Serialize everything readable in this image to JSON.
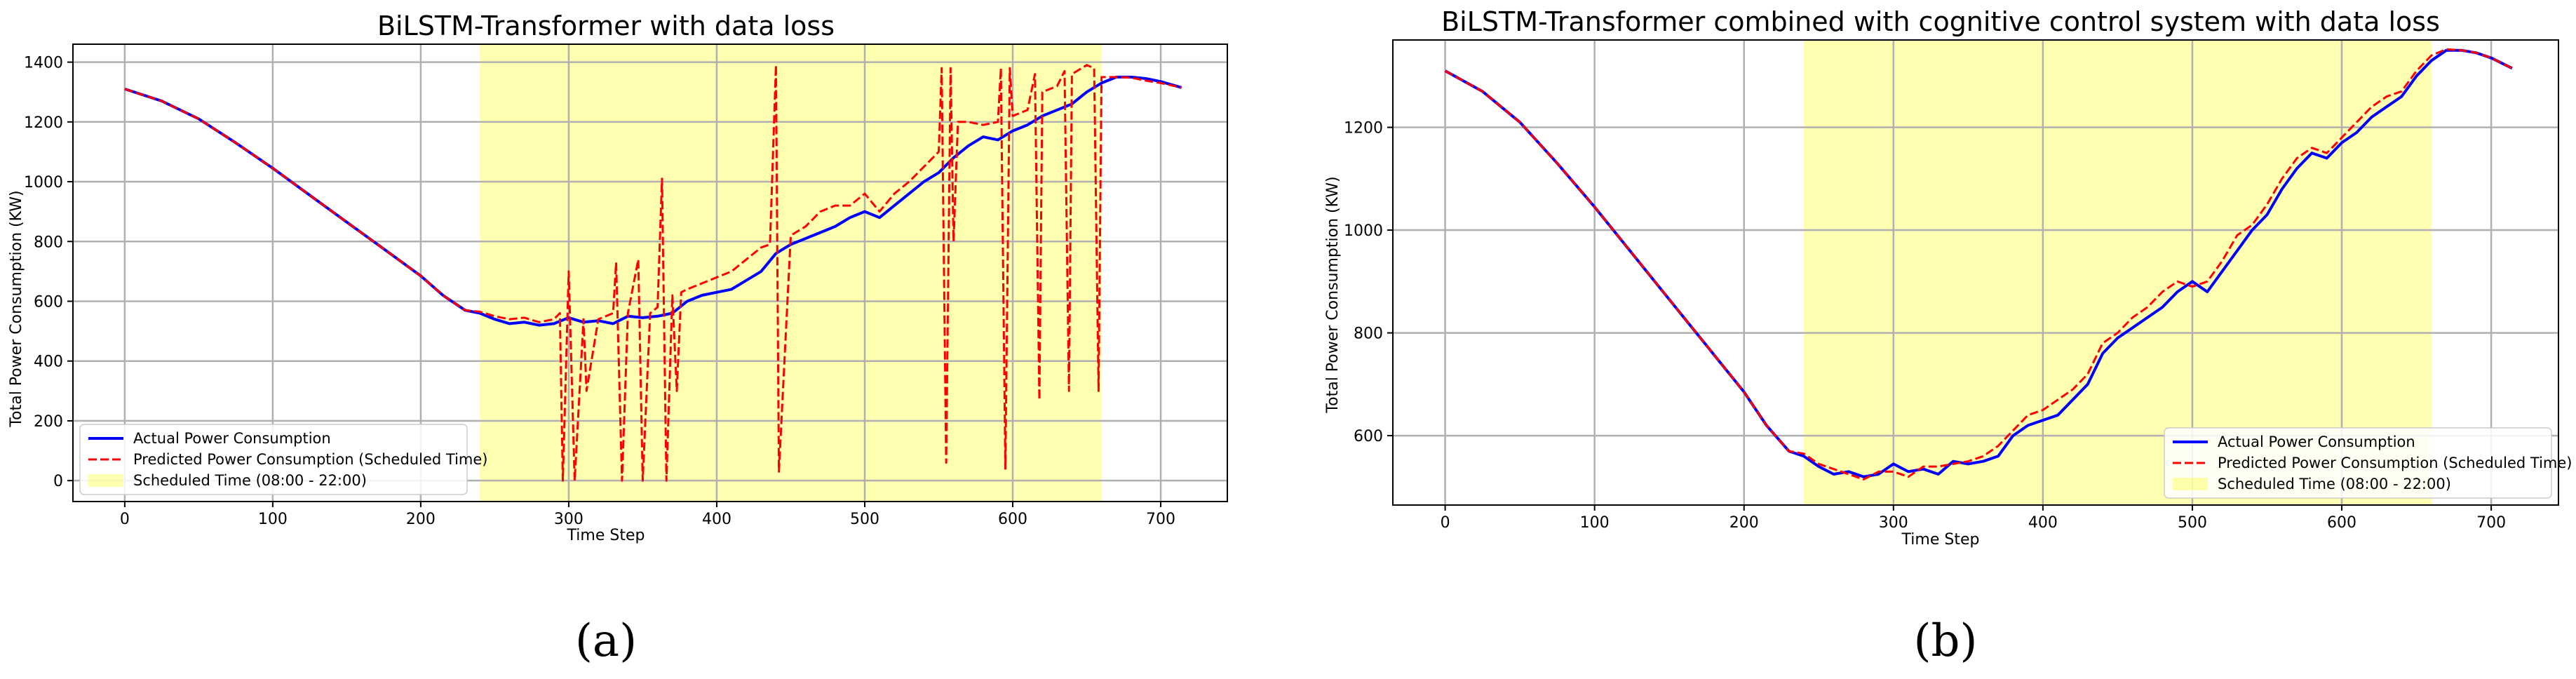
{
  "panels": [
    {
      "label": "(a)"
    },
    {
      "label": "(b)"
    }
  ],
  "colors": {
    "actual": "#0000ff",
    "predicted": "#ff0000",
    "scheduled": "#ffff00",
    "grid": "#b0b0b0"
  },
  "chart_data": [
    {
      "type": "line",
      "title": "BiLSTM-Transformer with data loss",
      "xlabel": "Time Step",
      "ylabel": "Total Power Consumption (KW)",
      "xlim": [
        -35,
        745
      ],
      "ylim": [
        -70,
        1460
      ],
      "xticks": [
        0,
        100,
        200,
        300,
        400,
        500,
        600,
        700
      ],
      "yticks": [
        0,
        200,
        400,
        600,
        800,
        1000,
        1200,
        1400
      ],
      "grid": true,
      "legend_position": "lower-left",
      "scheduled_span": [
        240,
        660
      ],
      "series": [
        {
          "name": "Actual Power Consumption",
          "style": "solid",
          "x": [
            0,
            25,
            50,
            75,
            100,
            125,
            150,
            175,
            200,
            215,
            230,
            240,
            250,
            260,
            270,
            280,
            290,
            300,
            310,
            320,
            330,
            340,
            350,
            360,
            370,
            380,
            390,
            400,
            410,
            420,
            430,
            440,
            450,
            460,
            470,
            480,
            490,
            500,
            510,
            520,
            530,
            540,
            550,
            560,
            570,
            580,
            590,
            600,
            610,
            620,
            630,
            640,
            650,
            660,
            670,
            680,
            690,
            700,
            714
          ],
          "y": [
            1310,
            1270,
            1210,
            1130,
            1045,
            955,
            865,
            775,
            685,
            620,
            570,
            560,
            540,
            525,
            530,
            520,
            525,
            545,
            530,
            535,
            525,
            550,
            545,
            550,
            560,
            600,
            620,
            630,
            640,
            670,
            700,
            760,
            790,
            810,
            830,
            850,
            880,
            900,
            880,
            920,
            960,
            1000,
            1030,
            1080,
            1120,
            1150,
            1140,
            1170,
            1190,
            1220,
            1240,
            1260,
            1300,
            1330,
            1350,
            1350,
            1345,
            1335,
            1315
          ]
        },
        {
          "name": "Predicted Power Consumption (Scheduled Time)",
          "style": "dashed",
          "x": [
            0,
            25,
            50,
            75,
            100,
            125,
            150,
            175,
            200,
            215,
            230,
            240,
            250,
            260,
            270,
            280,
            290,
            294,
            296,
            300,
            304,
            310,
            312,
            320,
            330,
            332,
            336,
            340,
            347,
            350,
            355,
            360,
            363,
            366,
            370,
            373,
            376,
            380,
            390,
            400,
            410,
            420,
            430,
            436,
            440,
            442,
            450,
            460,
            470,
            480,
            490,
            500,
            510,
            520,
            530,
            540,
            550,
            552,
            555,
            558,
            560,
            563,
            570,
            580,
            590,
            592,
            595,
            598,
            600,
            610,
            615,
            618,
            620,
            630,
            635,
            638,
            640,
            650,
            655,
            658,
            660,
            670,
            680,
            690,
            700,
            714
          ],
          "y": [
            1310,
            1270,
            1210,
            1130,
            1045,
            955,
            865,
            775,
            685,
            620,
            570,
            565,
            550,
            540,
            545,
            530,
            540,
            560,
            0,
            700,
            0,
            540,
            300,
            540,
            560,
            730,
            0,
            560,
            740,
            0,
            560,
            580,
            1010,
            0,
            620,
            300,
            630,
            640,
            660,
            680,
            700,
            740,
            780,
            790,
            1390,
            30,
            820,
            850,
            900,
            920,
            920,
            960,
            900,
            960,
            1000,
            1050,
            1100,
            1380,
            60,
            1380,
            800,
            1200,
            1200,
            1190,
            1200,
            1380,
            40,
            1380,
            1220,
            1240,
            1360,
            270,
            1300,
            1320,
            1370,
            300,
            1360,
            1390,
            1380,
            300,
            1350,
            1350,
            1348,
            1338,
            1330,
            1315
          ]
        }
      ],
      "legend": [
        "Actual Power Consumption",
        "Predicted Power Consumption (Scheduled Time)",
        "Scheduled Time (08:00 - 22:00)"
      ]
    },
    {
      "type": "line",
      "title": "BiLSTM-Transformer combined with cognitive control system with data loss",
      "xlabel": "Time Step",
      "ylabel": "Total Power Consumption (KW)",
      "xlim": [
        -35,
        745
      ],
      "ylim": [
        465,
        1370
      ],
      "xticks": [
        0,
        100,
        200,
        300,
        400,
        500,
        600,
        700
      ],
      "yticks": [
        600,
        800,
        1000,
        1200
      ],
      "grid": true,
      "legend_position": "lower-right",
      "scheduled_span": [
        240,
        660
      ],
      "series": [
        {
          "name": "Actual Power Consumption",
          "style": "solid",
          "x": [
            0,
            25,
            50,
            75,
            100,
            125,
            150,
            175,
            200,
            215,
            230,
            240,
            250,
            260,
            270,
            280,
            290,
            300,
            310,
            320,
            330,
            340,
            350,
            360,
            370,
            380,
            390,
            400,
            410,
            420,
            430,
            440,
            450,
            460,
            470,
            480,
            490,
            500,
            510,
            520,
            530,
            540,
            550,
            560,
            570,
            580,
            590,
            600,
            610,
            620,
            630,
            640,
            650,
            660,
            670,
            680,
            690,
            700,
            714
          ],
          "y": [
            1310,
            1270,
            1210,
            1130,
            1045,
            955,
            865,
            775,
            685,
            620,
            570,
            560,
            540,
            525,
            530,
            520,
            525,
            545,
            530,
            535,
            525,
            550,
            545,
            550,
            560,
            600,
            620,
            630,
            640,
            670,
            700,
            760,
            790,
            810,
            830,
            850,
            880,
            900,
            880,
            920,
            960,
            1000,
            1030,
            1080,
            1120,
            1150,
            1140,
            1170,
            1190,
            1220,
            1240,
            1260,
            1300,
            1330,
            1350,
            1350,
            1345,
            1335,
            1315
          ]
        },
        {
          "name": "Predicted Power Consumption (Scheduled Time)",
          "style": "dashed",
          "x": [
            0,
            25,
            50,
            75,
            100,
            125,
            150,
            175,
            200,
            215,
            230,
            240,
            250,
            260,
            270,
            280,
            290,
            300,
            310,
            320,
            330,
            340,
            350,
            360,
            370,
            380,
            390,
            400,
            410,
            420,
            430,
            440,
            450,
            460,
            470,
            480,
            490,
            500,
            510,
            520,
            530,
            540,
            550,
            560,
            570,
            580,
            590,
            600,
            610,
            620,
            630,
            640,
            650,
            660,
            670,
            680,
            690,
            700,
            714
          ],
          "y": [
            1310,
            1270,
            1210,
            1130,
            1045,
            955,
            865,
            775,
            685,
            620,
            570,
            565,
            545,
            535,
            525,
            515,
            530,
            530,
            520,
            540,
            540,
            545,
            550,
            560,
            580,
            610,
            640,
            650,
            670,
            690,
            720,
            780,
            800,
            830,
            850,
            880,
            900,
            890,
            900,
            940,
            990,
            1010,
            1050,
            1100,
            1140,
            1160,
            1150,
            1180,
            1210,
            1240,
            1260,
            1270,
            1310,
            1340,
            1352,
            1350,
            1345,
            1335,
            1315
          ]
        }
      ],
      "legend": [
        "Actual Power Consumption",
        "Predicted Power Consumption (Scheduled Time)",
        "Scheduled Time (08:00 - 22:00)"
      ]
    }
  ]
}
